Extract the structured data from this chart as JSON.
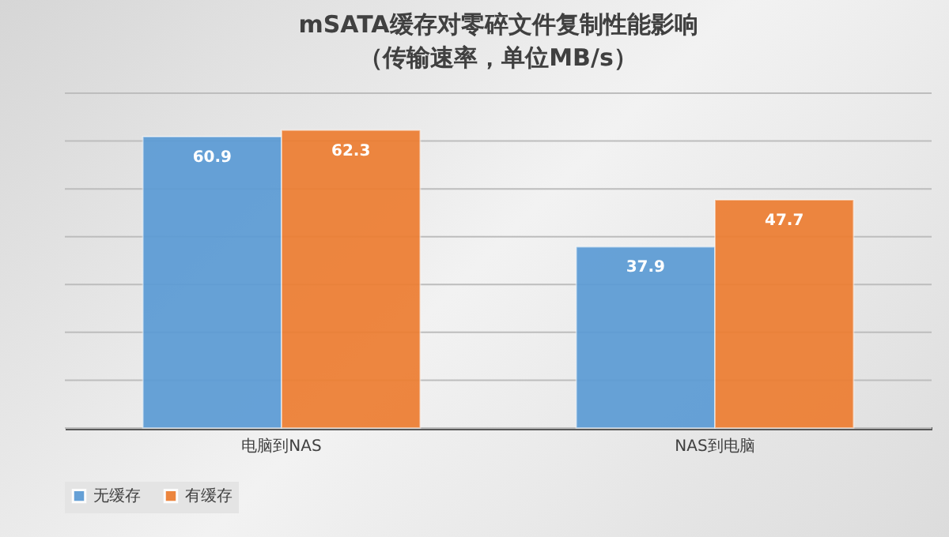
{
  "chart_data": {
    "type": "bar",
    "title": "mSATA缓存对零碎文件复制性能影响",
    "subtitle": "（传输速率，单位MB/s）",
    "categories": [
      "电脑到NAS",
      "NAS到电脑"
    ],
    "series": [
      {
        "name": "无缓存",
        "color": "#5b9bd5",
        "values": [
          60.9,
          37.9
        ]
      },
      {
        "name": "有缓存",
        "color": "#ed7d31",
        "values": [
          62.3,
          47.7
        ]
      }
    ],
    "ylim": [
      0,
      70
    ],
    "yticks": [
      {
        "value": 0,
        "label": null
      },
      {
        "value": 10,
        "label": null
      },
      {
        "value": 20,
        "label": null
      },
      {
        "value": 30,
        "label": null
      },
      {
        "value": 40,
        "label": null
      },
      {
        "value": 50,
        "label": null
      },
      {
        "value": 60,
        "label": null
      },
      {
        "value": 70,
        "label": null
      }
    ],
    "grid": "y",
    "legend": "bottom",
    "tick_labels": "x",
    "data_labels": true
  }
}
